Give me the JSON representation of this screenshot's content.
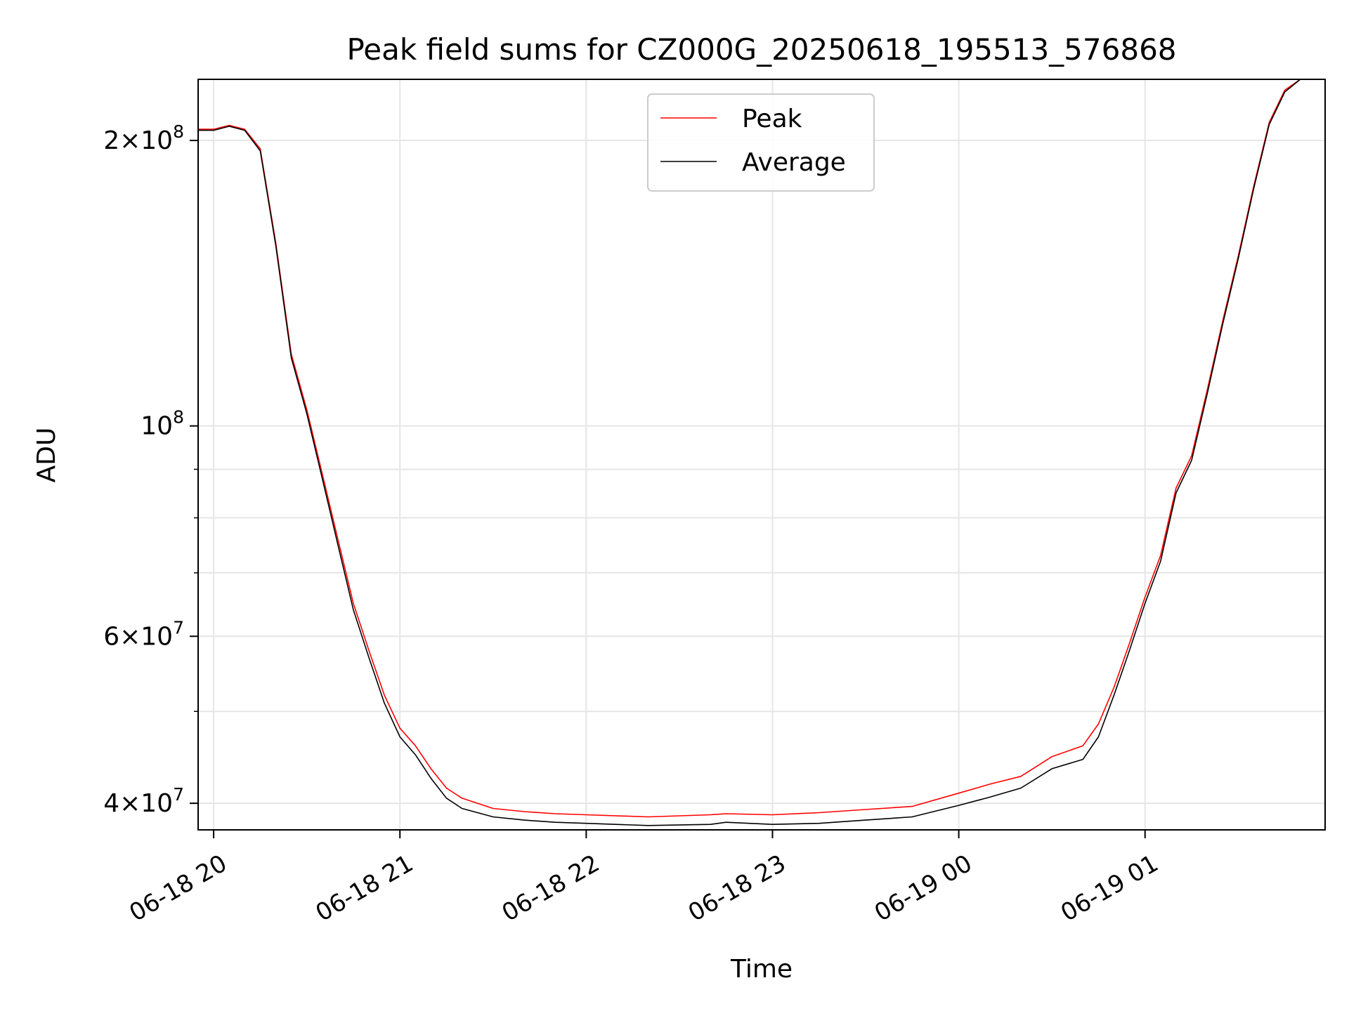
{
  "chart_data": {
    "type": "line",
    "title": "Peak field sums for CZ000G_20250618_195513_576868",
    "xlabel": "Time",
    "ylabel": "ADU",
    "yscale": "log",
    "ylim": [
      37500000,
      232000000
    ],
    "xlim": [
      "2025-06-18 19:55",
      "2025-06-19 01:58"
    ],
    "grid": true,
    "legend_position": "top-center",
    "x_ticks": [
      {
        "value": "2025-06-18 20:00",
        "label": "06-18 20"
      },
      {
        "value": "2025-06-18 21:00",
        "label": "06-18 21"
      },
      {
        "value": "2025-06-18 22:00",
        "label": "06-18 22"
      },
      {
        "value": "2025-06-18 23:00",
        "label": "06-18 23"
      },
      {
        "value": "2025-06-19 00:00",
        "label": "06-19 00"
      },
      {
        "value": "2025-06-19 01:00",
        "label": "06-19 01"
      }
    ],
    "y_ticks": [
      {
        "value": 40000000,
        "label": "4×10⁷",
        "mantissa": "4",
        "exponent": "7"
      },
      {
        "value": 60000000,
        "label": "6×10⁷",
        "mantissa": "6",
        "exponent": "7"
      },
      {
        "value": 100000000,
        "label": "10⁸",
        "mantissa": "",
        "exponent": "8"
      },
      {
        "value": 200000000,
        "label": "2×10⁸",
        "mantissa": "2",
        "exponent": "8"
      }
    ],
    "y_minor_ticks": [
      50000000,
      70000000,
      80000000,
      90000000
    ],
    "series": [
      {
        "name": "Average",
        "color": "#000000",
        "x": [
          "2025-06-18 19:55",
          "2025-06-18 20:00",
          "2025-06-18 20:05",
          "2025-06-18 20:10",
          "2025-06-18 20:15",
          "2025-06-18 20:20",
          "2025-06-18 20:25",
          "2025-06-18 20:30",
          "2025-06-18 20:35",
          "2025-06-18 20:40",
          "2025-06-18 20:45",
          "2025-06-18 20:50",
          "2025-06-18 20:55",
          "2025-06-18 21:00",
          "2025-06-18 21:05",
          "2025-06-18 21:10",
          "2025-06-18 21:15",
          "2025-06-18 21:20",
          "2025-06-18 21:30",
          "2025-06-18 21:40",
          "2025-06-18 21:50",
          "2025-06-18 22:00",
          "2025-06-18 22:20",
          "2025-06-18 22:40",
          "2025-06-18 22:45",
          "2025-06-18 23:00",
          "2025-06-18 23:15",
          "2025-06-18 23:30",
          "2025-06-18 23:45",
          "2025-06-19 00:00",
          "2025-06-19 00:10",
          "2025-06-19 00:20",
          "2025-06-19 00:30",
          "2025-06-19 00:40",
          "2025-06-19 00:45",
          "2025-06-19 00:50",
          "2025-06-19 00:55",
          "2025-06-19 01:00",
          "2025-06-19 01:05",
          "2025-06-19 01:10",
          "2025-06-19 01:15",
          "2025-06-19 01:20",
          "2025-06-19 01:25",
          "2025-06-19 01:30",
          "2025-06-19 01:35",
          "2025-06-19 01:40",
          "2025-06-19 01:45",
          "2025-06-19 01:50",
          "2025-06-19 01:58"
        ],
        "values": [
          205000000,
          205000000,
          207000000,
          205000000,
          195000000,
          155000000,
          118000000,
          103000000,
          88000000,
          75000000,
          64000000,
          57000000,
          51000000,
          47000000,
          45000000,
          42500000,
          40500000,
          39500000,
          38700000,
          38400000,
          38200000,
          38100000,
          37900000,
          38000000,
          38200000,
          38000000,
          38100000,
          38400000,
          38700000,
          39800000,
          40600000,
          41500000,
          43500000,
          44500000,
          47000000,
          52000000,
          58000000,
          65000000,
          72000000,
          85000000,
          92000000,
          108000000,
          128000000,
          150000000,
          178000000,
          208000000,
          225000000,
          232000000,
          232000000
        ]
      },
      {
        "name": "Peak",
        "color": "#ff0000",
        "x": [
          "2025-06-18 19:55",
          "2025-06-18 20:00",
          "2025-06-18 20:05",
          "2025-06-18 20:10",
          "2025-06-18 20:15",
          "2025-06-18 20:20",
          "2025-06-18 20:25",
          "2025-06-18 20:30",
          "2025-06-18 20:35",
          "2025-06-18 20:40",
          "2025-06-18 20:45",
          "2025-06-18 20:50",
          "2025-06-18 20:55",
          "2025-06-18 21:00",
          "2025-06-18 21:05",
          "2025-06-18 21:10",
          "2025-06-18 21:15",
          "2025-06-18 21:20",
          "2025-06-18 21:30",
          "2025-06-18 21:40",
          "2025-06-18 21:50",
          "2025-06-18 22:00",
          "2025-06-18 22:20",
          "2025-06-18 22:40",
          "2025-06-18 22:45",
          "2025-06-18 23:00",
          "2025-06-18 23:15",
          "2025-06-18 23:30",
          "2025-06-18 23:45",
          "2025-06-19 00:00",
          "2025-06-19 00:10",
          "2025-06-19 00:20",
          "2025-06-19 00:30",
          "2025-06-19 00:40",
          "2025-06-19 00:45",
          "2025-06-19 00:50",
          "2025-06-19 00:55",
          "2025-06-19 01:00",
          "2025-06-19 01:05",
          "2025-06-19 01:10",
          "2025-06-19 01:15",
          "2025-06-19 01:20",
          "2025-06-19 01:25",
          "2025-06-19 01:30",
          "2025-06-19 01:35",
          "2025-06-19 01:40",
          "2025-06-19 01:45",
          "2025-06-19 01:50",
          "2025-06-19 01:58"
        ],
        "values": [
          205500000,
          205500000,
          207500000,
          205500000,
          196000000,
          156000000,
          119000000,
          104000000,
          89000000,
          76000000,
          65000000,
          58000000,
          52000000,
          48000000,
          46000000,
          43500000,
          41500000,
          40500000,
          39500000,
          39200000,
          39000000,
          38900000,
          38700000,
          38900000,
          39000000,
          38900000,
          39100000,
          39400000,
          39700000,
          41000000,
          41900000,
          42700000,
          44800000,
          46000000,
          48500000,
          53000000,
          59000000,
          66000000,
          73000000,
          86000000,
          93000000,
          109000000,
          129000000,
          151000000,
          179000000,
          209000000,
          226000000,
          232000000,
          232000000
        ]
      }
    ]
  }
}
